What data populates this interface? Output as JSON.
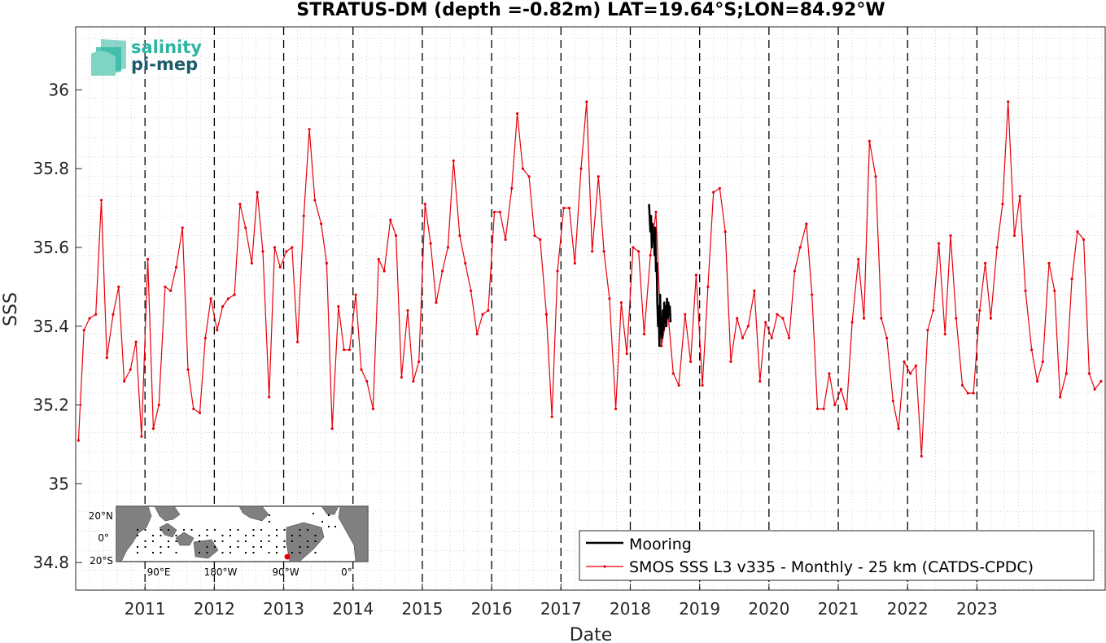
{
  "chart_data": {
    "type": "line",
    "title": "STRATUS-DM (depth =-0.82m) LAT=19.64°S;LON=84.92°W",
    "xlabel": "Date",
    "ylabel": "SSS",
    "xlim": [
      2010.0,
      2024.85
    ],
    "ylim": [
      34.73,
      36.16
    ],
    "yticks": [
      34.8,
      35,
      35.2,
      35.4,
      35.6,
      35.8,
      36
    ],
    "ytick_labels": [
      "34.8",
      "35",
      "35.2",
      "35.4",
      "35.6",
      "35.8",
      "36"
    ],
    "xticks": [
      2011,
      2012,
      2013,
      2014,
      2015,
      2016,
      2017,
      2018,
      2019,
      2020,
      2021,
      2022,
      2023
    ],
    "xtick_labels": [
      "2011",
      "2012",
      "2013",
      "2014",
      "2015",
      "2016",
      "2017",
      "2018",
      "2019",
      "2020",
      "2021",
      "2022",
      "2023"
    ],
    "vertical_dashed_lines_at": [
      2011,
      2012,
      2013,
      2014,
      2015,
      2016,
      2017,
      2018,
      2019,
      2020,
      2021,
      2022,
      2023
    ],
    "grid": "minor dotted",
    "legend": {
      "placement": "bottom-right",
      "entries": [
        "Mooring",
        "SMOS SSS L3 v335 - Monthly - 25 km (CATDS-CPDC)"
      ]
    },
    "series": [
      {
        "name": "SMOS SSS L3 v335 - Monthly - 25 km (CATDS-CPDC)",
        "color": "#e8000b",
        "marker": "dot",
        "points": [
          [
            2010.04,
            35.11
          ],
          [
            2010.12,
            35.39
          ],
          [
            2010.2,
            35.42
          ],
          [
            2010.29,
            35.43
          ],
          [
            2010.37,
            35.72
          ],
          [
            2010.45,
            35.32
          ],
          [
            2010.54,
            35.43
          ],
          [
            2010.62,
            35.5
          ],
          [
            2010.7,
            35.26
          ],
          [
            2010.79,
            35.29
          ],
          [
            2010.87,
            35.36
          ],
          [
            2010.95,
            35.12
          ],
          [
            2011.04,
            35.57
          ],
          [
            2011.12,
            35.14
          ],
          [
            2011.2,
            35.2
          ],
          [
            2011.29,
            35.5
          ],
          [
            2011.37,
            35.49
          ],
          [
            2011.45,
            35.55
          ],
          [
            2011.54,
            35.65
          ],
          [
            2011.62,
            35.29
          ],
          [
            2011.7,
            35.19
          ],
          [
            2011.79,
            35.18
          ],
          [
            2011.87,
            35.37
          ],
          [
            2011.95,
            35.47
          ],
          [
            2012.04,
            35.39
          ],
          [
            2012.12,
            35.45
          ],
          [
            2012.2,
            35.47
          ],
          [
            2012.29,
            35.48
          ],
          [
            2012.37,
            35.71
          ],
          [
            2012.45,
            35.65
          ],
          [
            2012.54,
            35.56
          ],
          [
            2012.62,
            35.74
          ],
          [
            2012.7,
            35.59
          ],
          [
            2012.79,
            35.22
          ],
          [
            2012.87,
            35.6
          ],
          [
            2012.95,
            35.55
          ],
          [
            2013.04,
            35.59
          ],
          [
            2013.12,
            35.6
          ],
          [
            2013.2,
            35.36
          ],
          [
            2013.29,
            35.68
          ],
          [
            2013.37,
            35.9
          ],
          [
            2013.45,
            35.72
          ],
          [
            2013.54,
            35.66
          ],
          [
            2013.62,
            35.56
          ],
          [
            2013.7,
            35.14
          ],
          [
            2013.79,
            35.45
          ],
          [
            2013.87,
            35.34
          ],
          [
            2013.95,
            35.34
          ],
          [
            2014.04,
            35.48
          ],
          [
            2014.12,
            35.29
          ],
          [
            2014.2,
            35.26
          ],
          [
            2014.29,
            35.19
          ],
          [
            2014.37,
            35.57
          ],
          [
            2014.45,
            35.54
          ],
          [
            2014.54,
            35.67
          ],
          [
            2014.62,
            35.63
          ],
          [
            2014.7,
            35.27
          ],
          [
            2014.79,
            35.44
          ],
          [
            2014.87,
            35.26
          ],
          [
            2014.95,
            35.31
          ],
          [
            2015.04,
            35.71
          ],
          [
            2015.12,
            35.61
          ],
          [
            2015.2,
            35.46
          ],
          [
            2015.29,
            35.54
          ],
          [
            2015.37,
            35.6
          ],
          [
            2015.45,
            35.82
          ],
          [
            2015.54,
            35.63
          ],
          [
            2015.62,
            35.56
          ],
          [
            2015.7,
            35.49
          ],
          [
            2015.79,
            35.38
          ],
          [
            2015.87,
            35.43
          ],
          [
            2015.95,
            35.44
          ],
          [
            2016.04,
            35.69
          ],
          [
            2016.12,
            35.69
          ],
          [
            2016.2,
            35.62
          ],
          [
            2016.29,
            35.75
          ],
          [
            2016.37,
            35.94
          ],
          [
            2016.45,
            35.8
          ],
          [
            2016.54,
            35.78
          ],
          [
            2016.62,
            35.63
          ],
          [
            2016.7,
            35.62
          ],
          [
            2016.79,
            35.43
          ],
          [
            2016.87,
            35.17
          ],
          [
            2016.95,
            35.54
          ],
          [
            2017.04,
            35.7
          ],
          [
            2017.12,
            35.7
          ],
          [
            2017.2,
            35.56
          ],
          [
            2017.29,
            35.8
          ],
          [
            2017.37,
            35.97
          ],
          [
            2017.45,
            35.59
          ],
          [
            2017.54,
            35.78
          ],
          [
            2017.62,
            35.59
          ],
          [
            2017.7,
            35.47
          ],
          [
            2017.79,
            35.19
          ],
          [
            2017.87,
            35.46
          ],
          [
            2017.95,
            35.33
          ],
          [
            2018.04,
            35.6
          ],
          [
            2018.12,
            35.59
          ],
          [
            2018.2,
            35.38
          ],
          [
            2018.29,
            35.58
          ],
          [
            2018.37,
            35.69
          ],
          [
            2018.45,
            35.35
          ],
          [
            2018.54,
            35.44
          ],
          [
            2018.62,
            35.28
          ],
          [
            2018.7,
            35.25
          ],
          [
            2018.79,
            35.43
          ],
          [
            2018.87,
            35.31
          ],
          [
            2018.95,
            35.53
          ],
          [
            2019.04,
            35.25
          ],
          [
            2019.12,
            35.5
          ],
          [
            2019.2,
            35.74
          ],
          [
            2019.29,
            35.75
          ],
          [
            2019.37,
            35.64
          ],
          [
            2019.45,
            35.31
          ],
          [
            2019.54,
            35.42
          ],
          [
            2019.62,
            35.37
          ],
          [
            2019.7,
            35.4
          ],
          [
            2019.79,
            35.49
          ],
          [
            2019.87,
            35.26
          ],
          [
            2019.95,
            35.41
          ],
          [
            2020.04,
            35.37
          ],
          [
            2020.12,
            35.43
          ],
          [
            2020.2,
            35.42
          ],
          [
            2020.29,
            35.37
          ],
          [
            2020.37,
            35.54
          ],
          [
            2020.45,
            35.6
          ],
          [
            2020.54,
            35.66
          ],
          [
            2020.62,
            35.48
          ],
          [
            2020.7,
            35.19
          ],
          [
            2020.79,
            35.19
          ],
          [
            2020.87,
            35.28
          ],
          [
            2020.95,
            35.2
          ],
          [
            2021.04,
            35.24
          ],
          [
            2021.12,
            35.19
          ],
          [
            2021.2,
            35.41
          ],
          [
            2021.29,
            35.57
          ],
          [
            2021.37,
            35.42
          ],
          [
            2021.45,
            35.87
          ],
          [
            2021.54,
            35.78
          ],
          [
            2021.62,
            35.42
          ],
          [
            2021.7,
            35.37
          ],
          [
            2021.79,
            35.21
          ],
          [
            2021.87,
            35.14
          ],
          [
            2021.95,
            35.31
          ],
          [
            2022.04,
            35.28
          ],
          [
            2022.12,
            35.3
          ],
          [
            2022.2,
            35.07
          ],
          [
            2022.29,
            35.39
          ],
          [
            2022.37,
            35.44
          ],
          [
            2022.45,
            35.61
          ],
          [
            2022.54,
            35.38
          ],
          [
            2022.62,
            35.63
          ],
          [
            2022.7,
            35.42
          ],
          [
            2022.79,
            35.25
          ],
          [
            2022.87,
            35.23
          ],
          [
            2022.95,
            35.23
          ],
          [
            2023.04,
            35.44
          ],
          [
            2023.12,
            35.56
          ],
          [
            2023.2,
            35.42
          ],
          [
            2023.29,
            35.6
          ],
          [
            2023.37,
            35.71
          ],
          [
            2023.45,
            35.97
          ],
          [
            2023.54,
            35.63
          ],
          [
            2023.62,
            35.73
          ],
          [
            2023.7,
            35.49
          ],
          [
            2023.79,
            35.34
          ],
          [
            2023.87,
            35.26
          ],
          [
            2023.95,
            35.31
          ],
          [
            2024.04,
            35.56
          ],
          [
            2024.12,
            35.49
          ],
          [
            2024.2,
            35.22
          ],
          [
            2024.29,
            35.28
          ],
          [
            2024.37,
            35.52
          ],
          [
            2024.45,
            35.64
          ],
          [
            2024.54,
            35.62
          ],
          [
            2024.62,
            35.28
          ],
          [
            2024.7,
            35.24
          ],
          [
            2024.79,
            35.26
          ]
        ]
      },
      {
        "name": "Mooring",
        "color": "#000000",
        "points": [
          [
            2018.27,
            35.71
          ],
          [
            2018.29,
            35.64
          ],
          [
            2018.3,
            35.68
          ],
          [
            2018.31,
            35.6
          ],
          [
            2018.32,
            35.66
          ],
          [
            2018.33,
            35.62
          ],
          [
            2018.34,
            35.64
          ],
          [
            2018.35,
            35.58
          ],
          [
            2018.36,
            35.65
          ],
          [
            2018.37,
            35.54
          ],
          [
            2018.38,
            35.56
          ],
          [
            2018.39,
            35.46
          ],
          [
            2018.4,
            35.4
          ],
          [
            2018.41,
            35.45
          ],
          [
            2018.42,
            35.35
          ],
          [
            2018.43,
            35.48
          ],
          [
            2018.44,
            35.38
          ],
          [
            2018.45,
            35.42
          ],
          [
            2018.46,
            35.37
          ],
          [
            2018.47,
            35.44
          ],
          [
            2018.48,
            35.39
          ],
          [
            2018.49,
            35.46
          ],
          [
            2018.5,
            35.41
          ],
          [
            2018.51,
            35.45
          ],
          [
            2018.52,
            35.4
          ],
          [
            2018.53,
            35.47
          ],
          [
            2018.54,
            35.42
          ],
          [
            2018.55,
            35.46
          ],
          [
            2018.56,
            35.43
          ],
          [
            2018.57,
            35.45
          ],
          [
            2018.58,
            35.41
          ]
        ]
      }
    ]
  },
  "logo": {
    "line1": "salinity",
    "line2": "pi-mep"
  },
  "inset_map": {
    "lat_labels": [
      "20°N",
      "0°",
      "20°S"
    ],
    "lon_labels": [
      "90°E",
      "180°W",
      "90°W",
      "0°"
    ]
  }
}
